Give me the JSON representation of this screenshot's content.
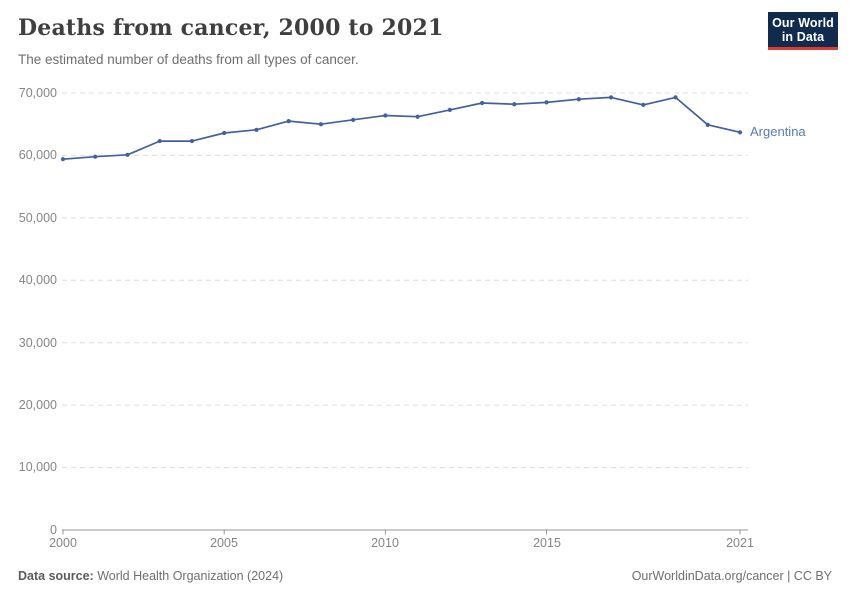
{
  "header": {
    "title": "Deaths from cancer, 2000 to 2021",
    "subtitle": "The estimated number of deaths from all types of cancer.",
    "logo": {
      "line1": "Our World",
      "line2": "in Data",
      "bg_color": "#112b4e",
      "accent_color": "#dc3a34"
    }
  },
  "chart_data": {
    "type": "line",
    "title": "Deaths from cancer, 2000 to 2021",
    "subtitle": "The estimated number of deaths from all types of cancer.",
    "xlabel": "",
    "ylabel": "",
    "xlim": [
      2000,
      2021
    ],
    "ylim": [
      0,
      70000
    ],
    "grid": "horizontal-dashed",
    "legend_position": "end-of-line-label",
    "x": [
      2000,
      2001,
      2002,
      2003,
      2004,
      2005,
      2006,
      2007,
      2008,
      2009,
      2010,
      2011,
      2012,
      2013,
      2014,
      2015,
      2016,
      2017,
      2018,
      2019,
      2020,
      2021
    ],
    "series": [
      {
        "name": "Argentina",
        "color": "#4160a0",
        "values": [
          59400,
          59800,
          60100,
          62300,
          62300,
          63600,
          64100,
          65500,
          65000,
          65700,
          66400,
          66200,
          67300,
          68400,
          68200,
          68500,
          69000,
          69300,
          68100,
          69300,
          64900,
          63700
        ]
      }
    ],
    "y_tick_values": [
      70000,
      60000,
      50000,
      40000,
      30000,
      20000,
      10000,
      0
    ],
    "y_tick_labels": [
      "70,000",
      "60,000",
      "50,000",
      "40,000",
      "30,000",
      "20,000",
      "10,000",
      "0"
    ],
    "x_tick_years": [
      2000,
      2005,
      2010,
      2015,
      2021
    ],
    "x_tick_labels": [
      "2000",
      "2005",
      "2010",
      "2015",
      "2021"
    ],
    "grid_color": "#dcdcdc",
    "axis_color": "#979797",
    "label_color": "#5878b3"
  },
  "footer": {
    "source_label": "Data source:",
    "source_value": " World Health Organization (2024)",
    "link": "OurWorldinData.org/cancer | CC BY"
  }
}
